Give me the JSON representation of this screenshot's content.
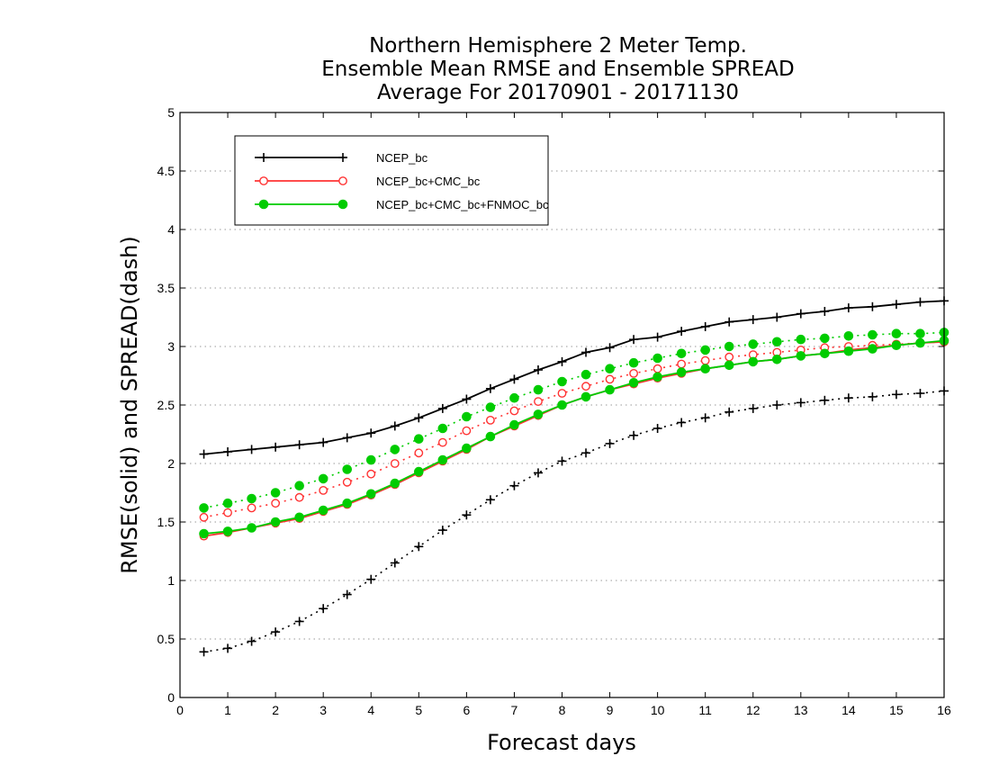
{
  "chart_data": {
    "type": "line",
    "title": "Northern Hemisphere 2 Meter Temp.",
    "subtitle": "Ensemble Mean RMSE and Ensemble SPREAD",
    "subtitle2": "Average For 20170901 - 20171130",
    "xlabel": "Forecast days",
    "ylabel": "RMSE(solid) and SPREAD(dash)",
    "xlim": [
      0,
      16
    ],
    "ylim": [
      0,
      5
    ],
    "xticks": [
      0,
      1,
      2,
      3,
      4,
      5,
      6,
      7,
      8,
      9,
      10,
      11,
      12,
      13,
      14,
      15,
      16
    ],
    "yticks": [
      0,
      0.5,
      1,
      1.5,
      2,
      2.5,
      3,
      3.5,
      4,
      4.5,
      5
    ],
    "ytick_labels": [
      "0",
      "0.5",
      "1",
      "1.5",
      "2",
      "2.5",
      "3",
      "3.5",
      "4",
      "4.5",
      "5"
    ],
    "grid": "horizontal dotted",
    "legend_position": "top-left",
    "x": [
      0.5,
      1,
      1.5,
      2,
      2.5,
      3,
      3.5,
      4,
      4.5,
      5,
      5.5,
      6,
      6.5,
      7,
      7.5,
      8,
      8.5,
      9,
      9.5,
      10,
      10.5,
      11,
      11.5,
      12,
      12.5,
      13,
      13.5,
      14,
      14.5,
      15,
      15.5,
      16
    ],
    "series": [
      {
        "name": "NCEP_bc",
        "color": "#000000",
        "marker": "plus",
        "rmse": [
          2.08,
          2.1,
          2.12,
          2.14,
          2.16,
          2.18,
          2.22,
          2.26,
          2.32,
          2.39,
          2.47,
          2.55,
          2.64,
          2.72,
          2.8,
          2.87,
          2.95,
          2.99,
          3.06,
          3.08,
          3.13,
          3.17,
          3.21,
          3.23,
          3.25,
          3.28,
          3.3,
          3.33,
          3.34,
          3.36,
          3.38,
          3.39
        ],
        "spread": [
          0.39,
          0.42,
          0.48,
          0.56,
          0.65,
          0.76,
          0.88,
          1.01,
          1.15,
          1.29,
          1.43,
          1.56,
          1.69,
          1.81,
          1.92,
          2.02,
          2.09,
          2.17,
          2.24,
          2.3,
          2.35,
          2.39,
          2.44,
          2.47,
          2.5,
          2.52,
          2.54,
          2.56,
          2.57,
          2.59,
          2.6,
          2.62
        ]
      },
      {
        "name": "NCEP_bc+CMC_bc",
        "color": "#ff3333",
        "marker": "open-circle",
        "rmse": [
          1.38,
          1.41,
          1.45,
          1.49,
          1.53,
          1.59,
          1.65,
          1.73,
          1.82,
          1.92,
          2.02,
          2.12,
          2.23,
          2.32,
          2.41,
          2.5,
          2.57,
          2.63,
          2.68,
          2.73,
          2.77,
          2.81,
          2.84,
          2.87,
          2.89,
          2.92,
          2.94,
          2.97,
          2.99,
          3.01,
          3.03,
          3.04
        ],
        "spread": [
          1.54,
          1.58,
          1.62,
          1.66,
          1.71,
          1.77,
          1.84,
          1.91,
          2.0,
          2.09,
          2.18,
          2.28,
          2.37,
          2.45,
          2.53,
          2.6,
          2.66,
          2.72,
          2.77,
          2.81,
          2.85,
          2.88,
          2.91,
          2.93,
          2.95,
          2.97,
          2.99,
          3.0,
          3.01,
          3.02,
          3.03,
          3.04
        ]
      },
      {
        "name": "NCEP_bc+CMC_bc+FNMOC_bc",
        "color": "#00cc00",
        "marker": "filled-circle",
        "rmse": [
          1.4,
          1.42,
          1.45,
          1.5,
          1.54,
          1.6,
          1.66,
          1.74,
          1.83,
          1.93,
          2.03,
          2.13,
          2.23,
          2.33,
          2.42,
          2.5,
          2.57,
          2.63,
          2.69,
          2.74,
          2.78,
          2.81,
          2.84,
          2.87,
          2.89,
          2.92,
          2.94,
          2.96,
          2.98,
          3.01,
          3.03,
          3.05
        ],
        "spread": [
          1.62,
          1.66,
          1.7,
          1.75,
          1.81,
          1.87,
          1.95,
          2.03,
          2.12,
          2.21,
          2.3,
          2.4,
          2.48,
          2.56,
          2.63,
          2.7,
          2.76,
          2.81,
          2.86,
          2.9,
          2.94,
          2.97,
          3.0,
          3.02,
          3.04,
          3.06,
          3.07,
          3.09,
          3.1,
          3.11,
          3.11,
          3.12
        ]
      }
    ]
  }
}
